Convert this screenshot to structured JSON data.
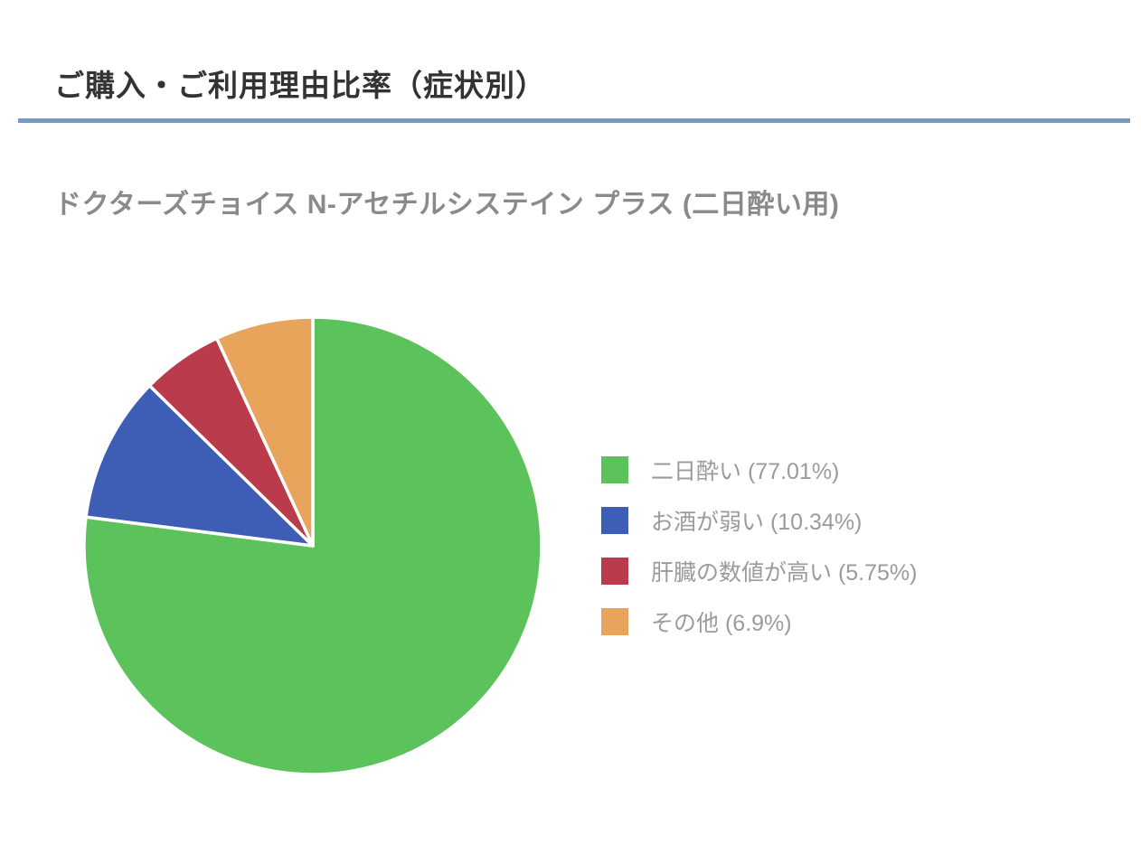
{
  "header": {
    "title": "ご購入・ご利用理由比率（症状別）",
    "subtitle": "ドクターズチョイス N-アセチルシステイン プラス (二日酔い用)"
  },
  "colors": {
    "divider": "#6F9CCB",
    "title_text": "#333333",
    "subtitle_text": "#8A8A8A",
    "legend_text": "#9B9B9B",
    "slice_separator": "#FFFFFF"
  },
  "chart_data": {
    "type": "pie",
    "title": "ご購入・ご利用理由比率（症状別）",
    "subtitle": "ドクターズチョイス N-アセチルシステイン プラス (二日酔い用)",
    "start_angle_deg": 0,
    "direction": "clockwise",
    "legend_position": "right",
    "slices": [
      {
        "label": "二日酔い",
        "value_percent": 77.01,
        "color": "#5CC25C",
        "legend_text": "二日酔い (77.01%)"
      },
      {
        "label": "お酒が弱い",
        "value_percent": 10.34,
        "color": "#3E5EB5",
        "legend_text": "お酒が弱い (10.34%)"
      },
      {
        "label": "肝臓の数値が高い",
        "value_percent": 5.75,
        "color": "#B93B4C",
        "legend_text": "肝臓の数値が高い (5.75%)"
      },
      {
        "label": "その他",
        "value_percent": 6.9,
        "color": "#E8A45A",
        "legend_text": "その他 (6.9%)"
      }
    ]
  }
}
